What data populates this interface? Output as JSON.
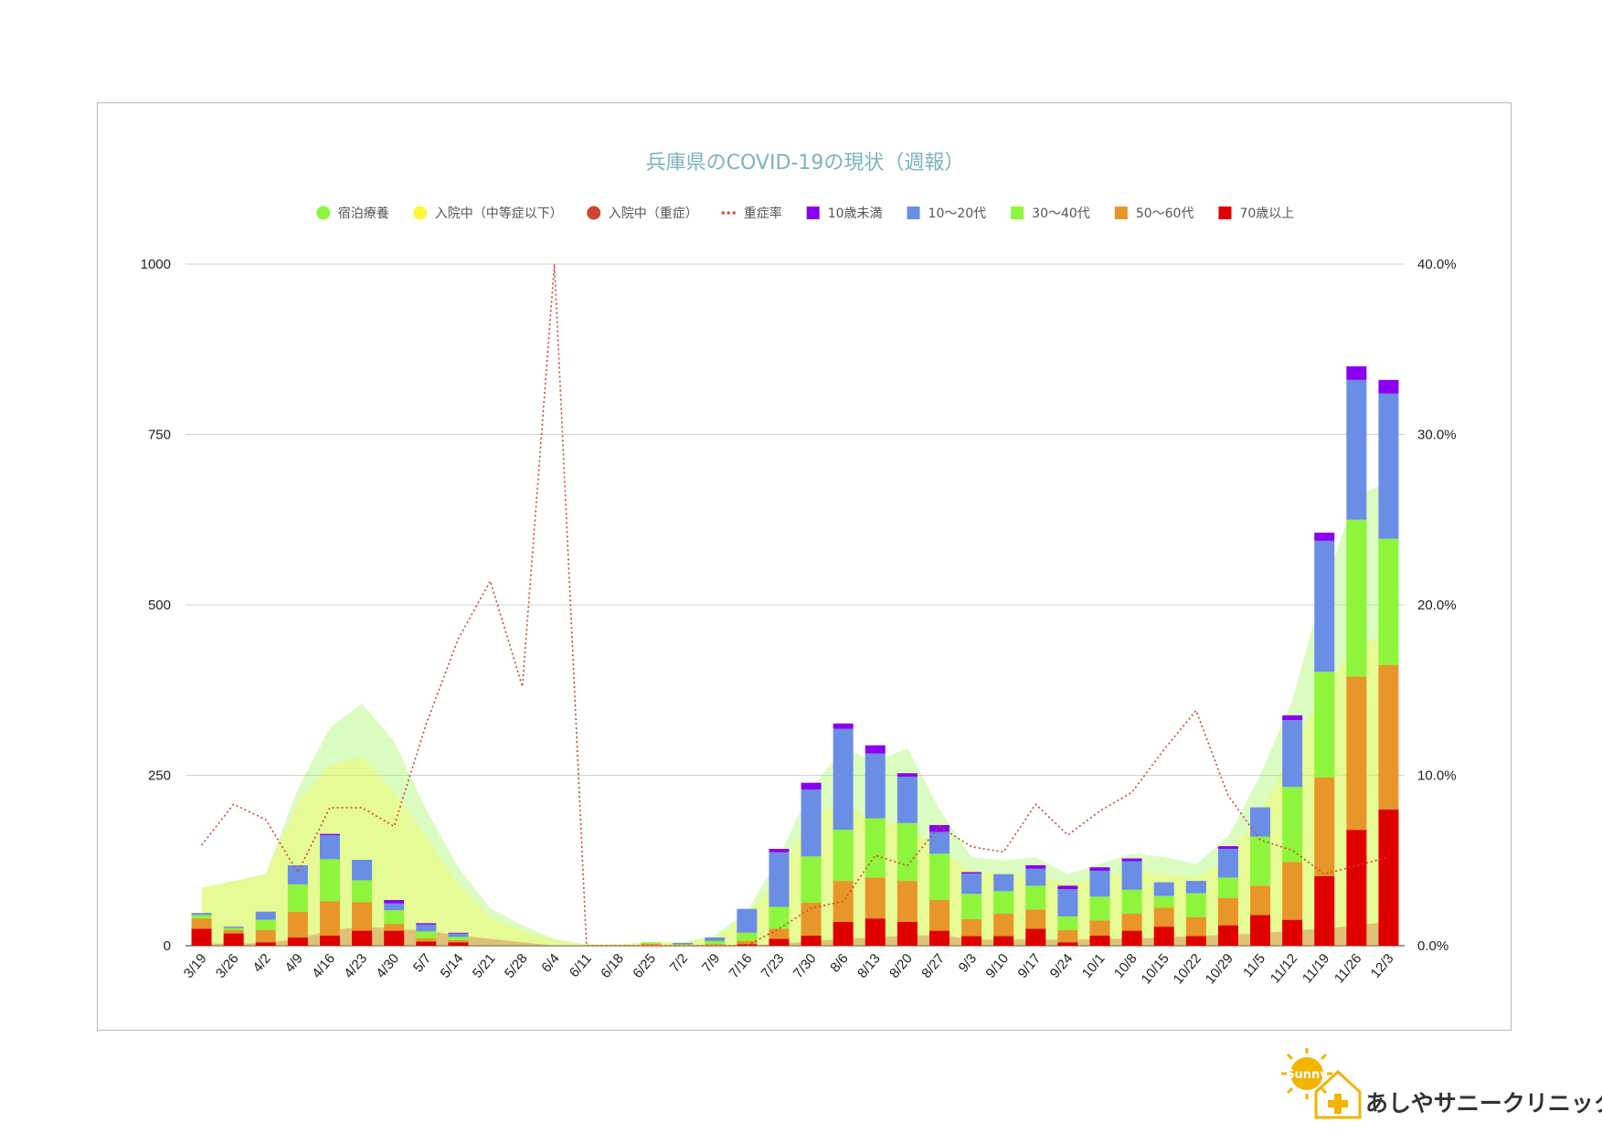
{
  "clinic": {
    "name": "あしやサニークリニック",
    "badge": "Sunny"
  },
  "chart_data": {
    "type": "bar",
    "title": "兵庫県のCOVID-19の現状（週報）",
    "legend_position": "top",
    "legend": [
      {
        "name": "宿泊療養",
        "kind": "dot",
        "color": "#8ef53c"
      },
      {
        "name": "入院中（中等症以下）",
        "kind": "dot",
        "color": "#fff63c"
      },
      {
        "name": "入院中（重症）",
        "kind": "dot",
        "color": "#cc4433"
      },
      {
        "name": "重症率",
        "kind": "dash",
        "color": "#cc4433"
      },
      {
        "name": "10歳未満",
        "kind": "square",
        "color": "#8a00f0"
      },
      {
        "name": "10〜20代",
        "kind": "square",
        "color": "#6a8de6"
      },
      {
        "name": "30〜40代",
        "kind": "square",
        "color": "#8ef53c"
      },
      {
        "name": "50〜60代",
        "kind": "square",
        "color": "#e8962a"
      },
      {
        "name": "70歳以上",
        "kind": "square",
        "color": "#e00000"
      }
    ],
    "categories": [
      "3/19",
      "3/26",
      "4/2",
      "4/9",
      "4/16",
      "4/23",
      "4/30",
      "5/7",
      "5/14",
      "5/21",
      "5/28",
      "6/4",
      "6/11",
      "6/18",
      "6/25",
      "7/2",
      "7/9",
      "7/16",
      "7/23",
      "7/30",
      "8/6",
      "8/13",
      "8/20",
      "8/27",
      "9/3",
      "9/10",
      "9/17",
      "9/24",
      "10/1",
      "10/8",
      "10/15",
      "10/22",
      "10/29",
      "11/5",
      "11/12",
      "11/19",
      "11/26",
      "12/3"
    ],
    "y_left": {
      "min": 0,
      "max": 1000,
      "ticks": [
        "0",
        "250",
        "500",
        "750",
        "1000"
      ]
    },
    "y_right": {
      "min": 0,
      "max": 40,
      "ticks": [
        "0.0%",
        "10.0%",
        "20.0%",
        "30.0%",
        "40.0%"
      ]
    },
    "grid": true,
    "bar_series": [
      {
        "name": "70歳以上",
        "color": "#e00000",
        "values": [
          25,
          18,
          5,
          12,
          15,
          22,
          22,
          6,
          5,
          0,
          0,
          0,
          0,
          0,
          0,
          0,
          0,
          2,
          10,
          15,
          35,
          40,
          35,
          22,
          14,
          14,
          25,
          5,
          15,
          22,
          28,
          14,
          30,
          45,
          38,
          102,
          170,
          200
        ]
      },
      {
        "name": "50〜60代",
        "color": "#e8962a",
        "values": [
          15,
          5,
          18,
          38,
          50,
          42,
          10,
          5,
          3,
          0,
          0,
          0,
          0,
          0,
          3,
          0,
          2,
          5,
          15,
          48,
          60,
          60,
          60,
          45,
          25,
          33,
          28,
          18,
          22,
          25,
          28,
          28,
          40,
          43,
          85,
          145,
          225,
          212
        ]
      },
      {
        "name": "30〜40代",
        "color": "#8ef53c",
        "values": [
          5,
          3,
          15,
          40,
          62,
          32,
          20,
          10,
          5,
          0,
          0,
          0,
          0,
          0,
          2,
          2,
          5,
          12,
          32,
          68,
          75,
          87,
          85,
          68,
          37,
          33,
          35,
          20,
          35,
          35,
          17,
          35,
          30,
          72,
          110,
          155,
          230,
          185
        ]
      },
      {
        "name": "10〜20代",
        "color": "#6a8de6",
        "values": [
          3,
          2,
          12,
          28,
          35,
          30,
          10,
          10,
          5,
          0,
          0,
          0,
          0,
          0,
          0,
          2,
          5,
          35,
          80,
          98,
          148,
          95,
          68,
          32,
          30,
          25,
          25,
          40,
          38,
          42,
          20,
          18,
          42,
          43,
          98,
          192,
          205,
          213
        ]
      },
      {
        "name": "10歳未満",
        "color": "#8a00f0",
        "values": [
          0,
          0,
          0,
          0,
          2,
          0,
          5,
          2,
          1,
          0,
          0,
          0,
          0,
          0,
          0,
          0,
          0,
          0,
          5,
          10,
          8,
          12,
          5,
          10,
          2,
          0,
          5,
          5,
          5,
          4,
          0,
          0,
          4,
          0,
          7,
          12,
          20,
          20
        ]
      }
    ],
    "area_series": [
      {
        "name": "宿泊療養",
        "color": "#8ef53c",
        "values": [
          85,
          95,
          105,
          230,
          320,
          355,
          300,
          200,
          115,
          55,
          30,
          10,
          2,
          2,
          5,
          5,
          15,
          50,
          130,
          230,
          290,
          270,
          290,
          200,
          130,
          125,
          130,
          105,
          120,
          135,
          130,
          120,
          160,
          250,
          360,
          530,
          660,
          680
        ]
      },
      {
        "name": "入院中（中等症以下）",
        "color": "#fff63c",
        "values": [
          85,
          95,
          105,
          210,
          265,
          278,
          225,
          160,
          90,
          40,
          22,
          8,
          2,
          2,
          5,
          5,
          12,
          45,
          105,
          190,
          210,
          180,
          180,
          140,
          110,
          105,
          105,
          90,
          100,
          110,
          105,
          100,
          130,
          195,
          285,
          380,
          440,
          460
        ]
      },
      {
        "name": "入院中（重症）",
        "color": "#cc4433",
        "values": [
          3,
          3,
          4,
          10,
          22,
          28,
          25,
          22,
          15,
          10,
          5,
          0,
          0,
          0,
          0,
          0,
          0,
          0,
          3,
          6,
          10,
          12,
          15,
          15,
          10,
          8,
          10,
          8,
          10,
          10,
          12,
          14,
          16,
          18,
          22,
          25,
          30,
          35
        ]
      }
    ],
    "line_series": {
      "name": "重症率",
      "color": "#cc4433",
      "values": [
        5.9,
        8.3,
        7.4,
        4.3,
        8.1,
        8.1,
        7.0,
        13.0,
        18.0,
        21.4,
        15.2,
        40.0,
        0.0,
        0.0,
        0.0,
        0.0,
        0.0,
        0.0,
        1.0,
        2.2,
        2.6,
        5.3,
        4.7,
        7.0,
        5.8,
        5.5,
        8.3,
        6.5,
        7.9,
        9.0,
        11.5,
        13.8,
        8.8,
        6.2,
        5.6,
        4.2,
        4.7,
        5.2
      ]
    }
  }
}
